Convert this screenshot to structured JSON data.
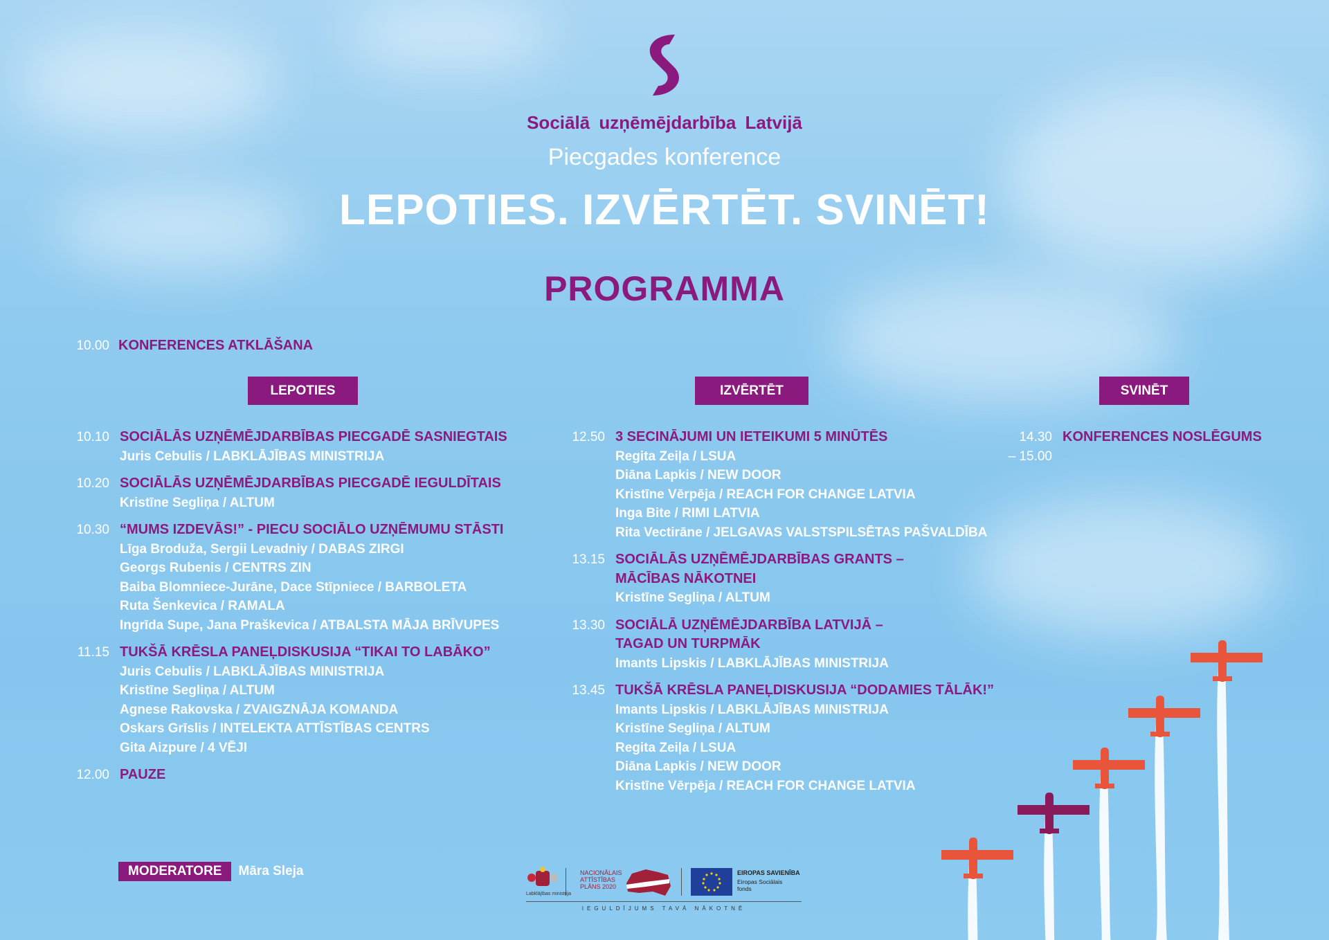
{
  "header": {
    "organization": "Sociālā uzņēmējdarbība Latvijā",
    "conference": "Piecgades konference",
    "slogan": "LEPOTIES. IZVĒRTĒT. SVINĒT!",
    "program_title": "PROGRAMMA"
  },
  "opening": {
    "time": "10.00",
    "title": "KONFERENCES ATKLĀŠANA"
  },
  "columns": [
    {
      "tag": "LEPOTIES",
      "items": [
        {
          "time": "10.10",
          "title": "SOCIĀLĀS UZŅĒMĒJDARBĪBAS PIECGADĒ SASNIEGTAIS",
          "speakers": [
            "Juris Cebulis / LABKLĀJĪBAS MINISTRIJA"
          ]
        },
        {
          "time": "10.20",
          "title": "SOCIĀLĀS UZŅĒMĒJDARBĪBAS PIECGADĒ IEGULDĪTAIS",
          "speakers": [
            "Kristīne Segliņa / ALTUM"
          ]
        },
        {
          "time": "10.30",
          "title": "“MUMS IZDEVĀS!” - PIECU SOCIĀLO UZŅĒMUMU STĀSTI",
          "speakers": [
            "Līga Broduža, Sergii Levadniy / DABAS ZIRGI",
            "Georgs Rubenis / CENTRS ZIN",
            "Baiba Blomniece-Jurāne, Dace Stīpniece / BARBOLETA",
            "Ruta Šenkevica / RAMALA",
            "Ingrīda Supe, Jana Praškevica / ATBALSTA MĀJA BRĪVUPES"
          ]
        },
        {
          "time": "11.15",
          "title": "TUKŠĀ KRĒSLA PANEĻDISKUSIJA “TIKAI TO LABĀKO”",
          "speakers": [
            "Juris Cebulis / LABKLĀJĪBAS MINISTRIJA",
            "Kristīne Segliņa / ALTUM",
            "Agnese Rakovska / ZVAIGZNĀJA KOMANDA",
            "Oskars Grīslis / INTELEKTA ATTĪSTĪBAS CENTRS",
            "Gita Aizpure / 4 VĒJI"
          ]
        },
        {
          "time": "12.00",
          "title": "PAUZE",
          "speakers": []
        }
      ]
    },
    {
      "tag": "IZVĒRTĒT",
      "items": [
        {
          "time": "12.50",
          "title": "3 SECINĀJUMI UN IETEIKUMI 5 MINŪTĒS",
          "speakers": [
            "Regita Zeiļa / LSUA",
            "Diāna Lapkis / NEW DOOR",
            "Kristīne Vērpēja / REACH FOR CHANGE LATVIA",
            "Inga Bite / RIMI LATVIA",
            "Rita Vectirāne / JELGAVAS VALSTSPILSĒTAS PAŠVALDĪBA"
          ]
        },
        {
          "time": "13.15",
          "title": "SOCIĀLĀS UZŅĒMĒJDARBĪBAS GRANTS –\nMĀCĪBAS NĀKOTNEI",
          "speakers": [
            "Kristīne Segliņa / ALTUM"
          ]
        },
        {
          "time": "13.30",
          "title": "SOCIĀLĀ UZŅĒMĒJDARBĪBA LATVIJĀ –\nTAGAD UN TURPMĀK",
          "speakers": [
            "Imants Lipskis / LABKLĀJĪBAS MINISTRIJA"
          ]
        },
        {
          "time": "13.45",
          "title": "TUKŠĀ KRĒSLA PANEĻDISKUSIJA “DODAMIES TĀLĀK!”",
          "speakers": [
            "Imants Lipskis / LABKLĀJĪBAS MINISTRIJA",
            "Kristīne Segliņa / ALTUM",
            "Regita Zeiļa / LSUA",
            "Diāna Lapkis / NEW DOOR",
            "Kristīne Vērpēja / REACH FOR CHANGE LATVIA"
          ]
        }
      ]
    },
    {
      "tag": "SVINĒT",
      "items": [
        {
          "time": "14.30\n– 15.00",
          "title": "KONFERENCES NOSLĒGUMS",
          "speakers": []
        }
      ]
    }
  ],
  "moderator": {
    "label": "MODERATORE",
    "name": "Māra Sleja"
  },
  "footer": {
    "ministry": "Labklājības ministrija",
    "nap": "NACIONĀLAIS\nATTĪSTĪBAS\nPLĀNS 2020",
    "eu": "EIROPAS SAVIENĪBA",
    "esf": "Eiropas Sociālais\nfonds",
    "motto": "IEGULDĪJUMS TAVĀ NĀKOTNĒ"
  },
  "colors": {
    "accent": "#8b1a7f",
    "sky": "#8fcaef",
    "plane": "#e8553a"
  }
}
